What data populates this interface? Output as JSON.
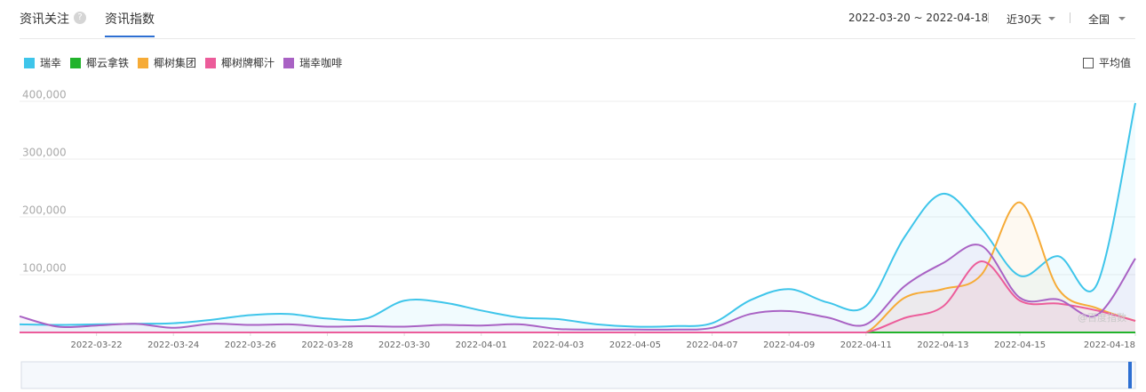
{
  "tabs": [
    "资讯关注",
    "资讯指数"
  ],
  "help_icon": "?",
  "date_range": "2022-03-20 ~ 2022-04-18",
  "period": "近30天",
  "region": "全国",
  "average_toggle": "平均值",
  "watermark": "@百度指数",
  "chart_data": {
    "type": "line",
    "categories": [
      null,
      null,
      "2022-03-22",
      null,
      "2022-03-24",
      null,
      "2022-03-26",
      null,
      "2022-03-28",
      null,
      "2022-03-30",
      null,
      "2022-04-01",
      null,
      "2022-04-03",
      null,
      "2022-04-05",
      null,
      "2022-04-07",
      null,
      "2022-04-09",
      null,
      "2022-04-11",
      null,
      "2022-04-13",
      null,
      "2022-04-15",
      null,
      null,
      "2022-04-18"
    ],
    "series": [
      {
        "name": "瑞幸",
        "color": "#3ec5ea",
        "values": [
          14000,
          13000,
          14000,
          15000,
          16000,
          22000,
          30000,
          32000,
          24000,
          24000,
          55000,
          52000,
          38000,
          26000,
          23000,
          14000,
          10000,
          11000,
          16000,
          56000,
          75000,
          52000,
          46000,
          165000,
          240000,
          180000,
          98000,
          132000,
          83000,
          397000
        ]
      },
      {
        "name": "椰云拿铁",
        "color": "#22b32c",
        "values": [
          0,
          0,
          0,
          0,
          0,
          0,
          0,
          0,
          0,
          0,
          0,
          0,
          0,
          0,
          0,
          0,
          0,
          0,
          0,
          0,
          0,
          0,
          0,
          0,
          0,
          0,
          0,
          0,
          0,
          0
        ]
      },
      {
        "name": "椰树集团",
        "color": "#f6ab37",
        "values": [
          0,
          0,
          0,
          0,
          0,
          0,
          0,
          0,
          0,
          0,
          0,
          0,
          0,
          0,
          0,
          0,
          0,
          0,
          0,
          0,
          0,
          0,
          0,
          60000,
          75000,
          100000,
          225000,
          75000,
          42000,
          20000
        ]
      },
      {
        "name": "椰树牌椰汁",
        "color": "#ec5c9a",
        "values": [
          0,
          0,
          0,
          0,
          0,
          0,
          0,
          0,
          0,
          0,
          0,
          0,
          0,
          0,
          0,
          0,
          0,
          0,
          0,
          0,
          0,
          0,
          0,
          25000,
          45000,
          123000,
          55000,
          50000,
          38000,
          20000
        ]
      },
      {
        "name": "瑞幸咖啡",
        "color": "#a962c4",
        "values": [
          28000,
          10000,
          12000,
          15000,
          8000,
          15000,
          13000,
          14000,
          10000,
          11000,
          10000,
          13000,
          12000,
          14000,
          6000,
          5000,
          5000,
          5000,
          8000,
          32000,
          37000,
          26000,
          14000,
          80000,
          120000,
          150000,
          60000,
          57000,
          30000,
          128000
        ]
      }
    ],
    "ylim": [
      0,
      400000
    ],
    "yticks": [
      {
        "value": 100000,
        "label": "100,000"
      },
      {
        "value": 200000,
        "label": "200,000"
      },
      {
        "value": 300000,
        "label": "300,000"
      },
      {
        "value": 400000,
        "label": "400,000"
      }
    ],
    "grid": true,
    "area": true
  }
}
